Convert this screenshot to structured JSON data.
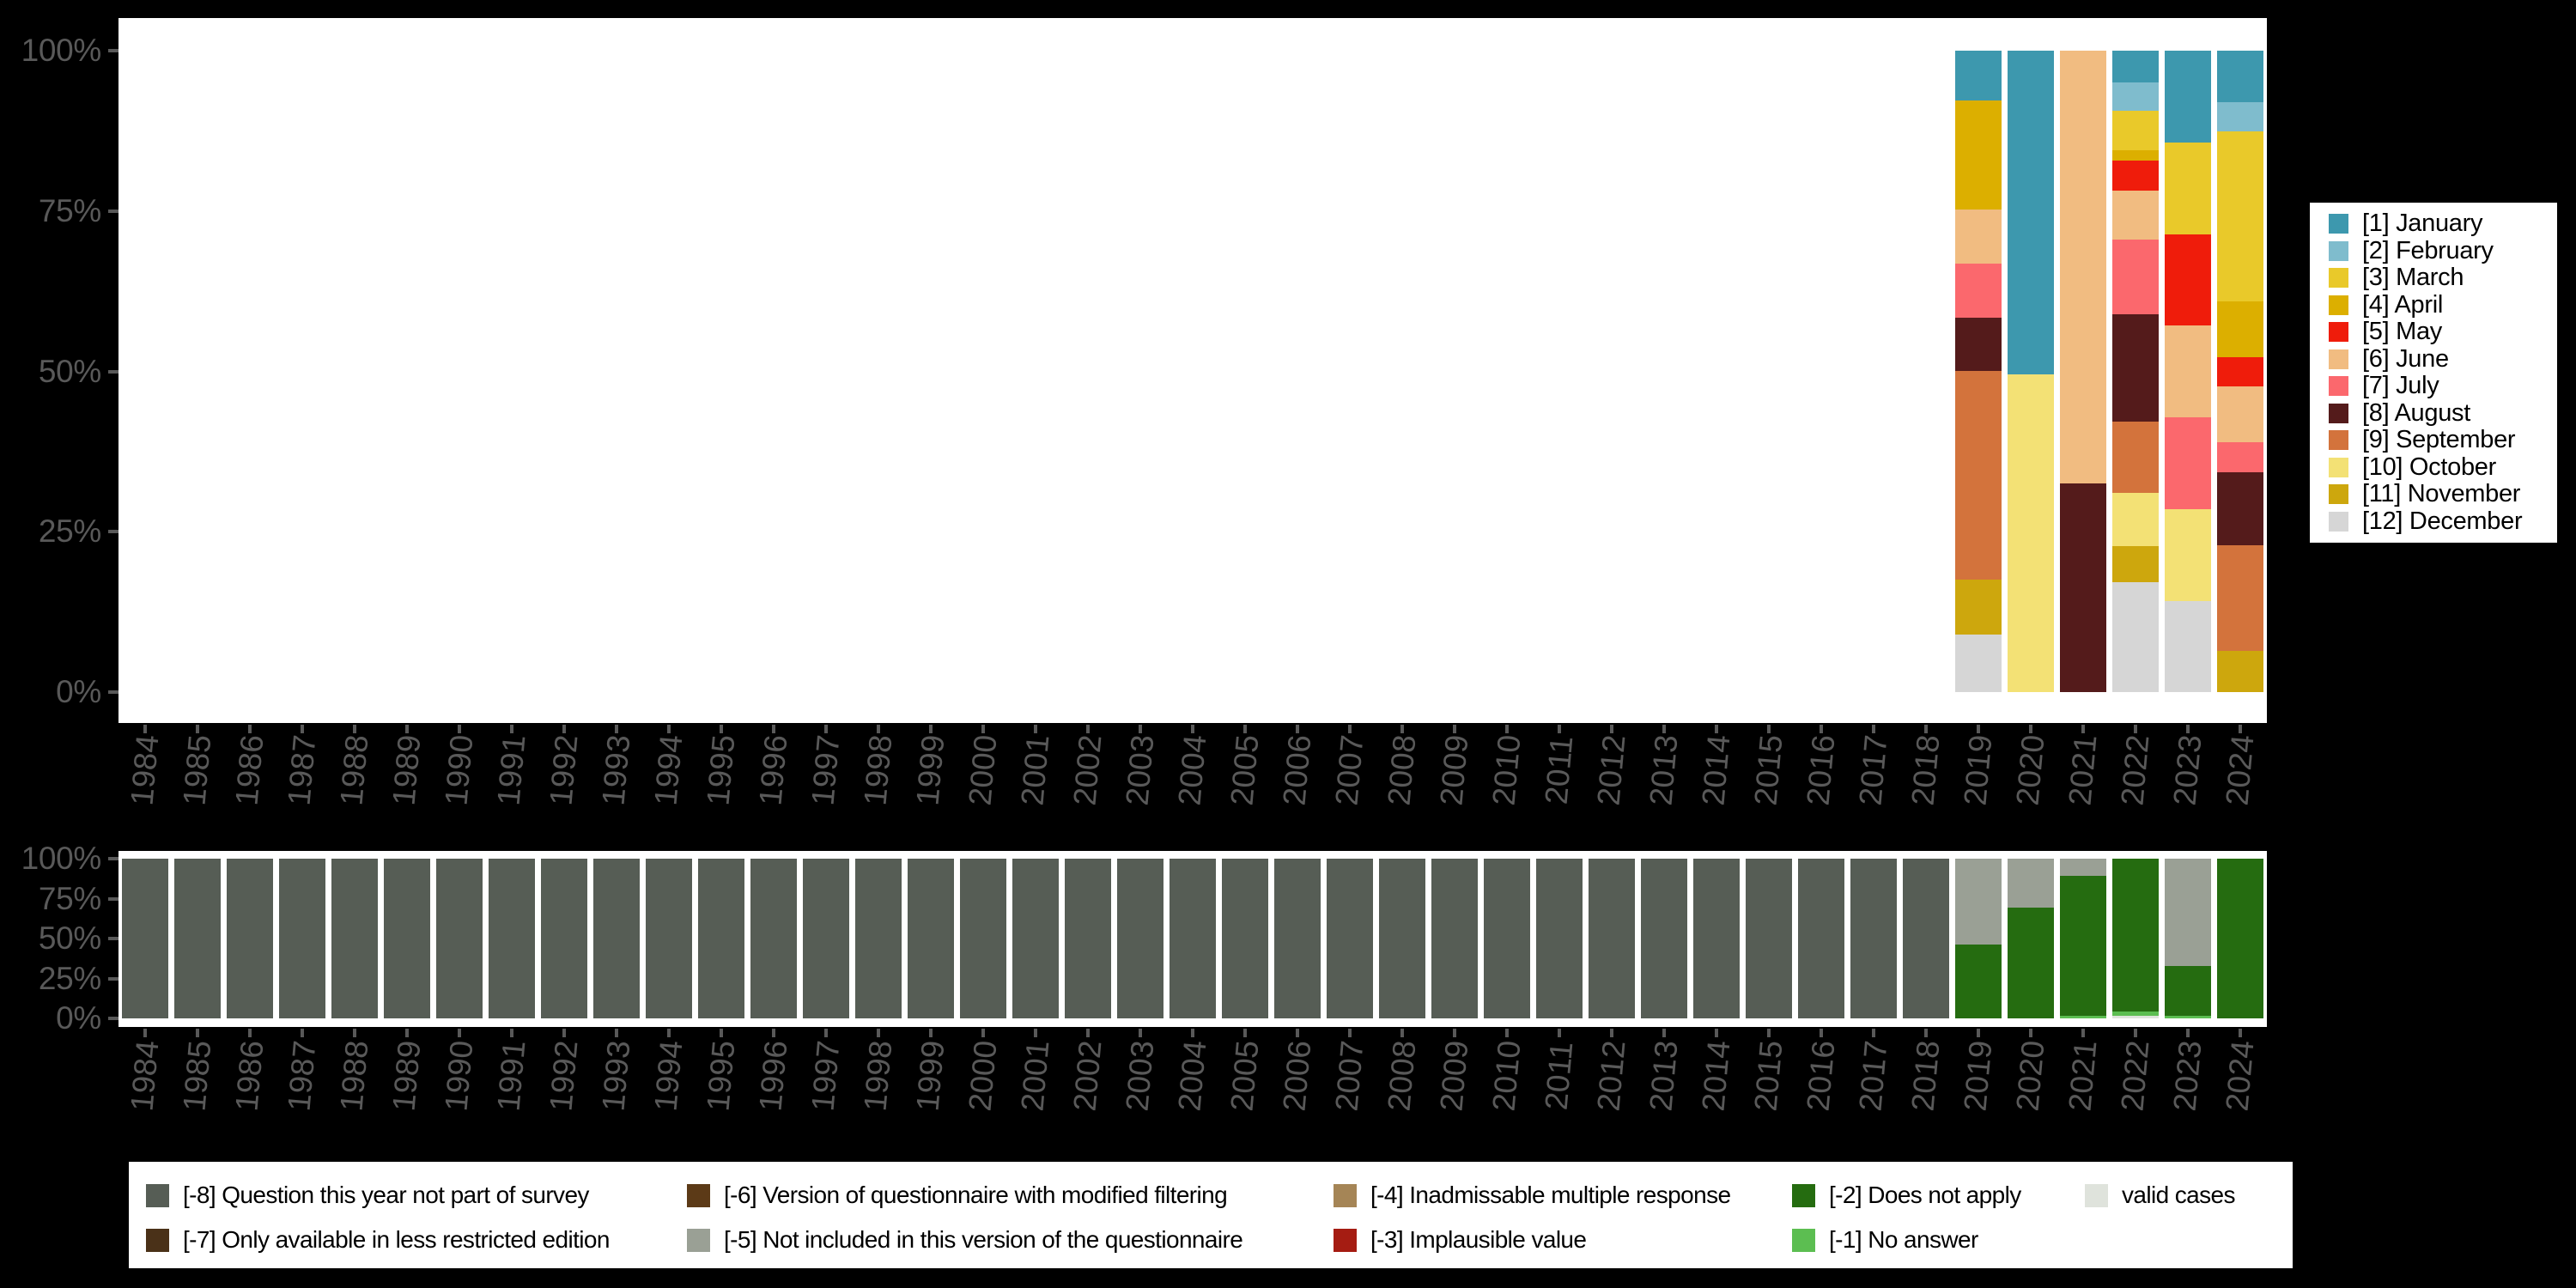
{
  "colors": {
    "background": "#000000",
    "panel_background": "#ffffff",
    "axis_text": "#595959",
    "legend_text": "#000000",
    "legend_background": "#ffffff"
  },
  "month_colors": {
    "January": "#3D98AE",
    "February": "#7FBCCD",
    "March": "#E9C92A",
    "April": "#DCAF00",
    "May": "#EF1C0B",
    "June": "#F1BC81",
    "July": "#FB686D",
    "August": "#541B1B",
    "September": "#D3733C",
    "October": "#F3E175",
    "November": "#CDA70D",
    "December": "#D6D6D6"
  },
  "missing_colors": {
    "-8": "#565D55",
    "-7": "#4A3118",
    "-6": "#5C3A17",
    "-5": "#9AA095",
    "-4": "#A58556",
    "-3": "#A51C12",
    "-2": "#256C10",
    "-1": "#5CBE51",
    "valid": "#DFE3DC"
  },
  "month_legend": {
    "position": "right",
    "items": [
      {
        "month": "January",
        "label": "[1] January"
      },
      {
        "month": "February",
        "label": "[2] February"
      },
      {
        "month": "March",
        "label": "[3] March"
      },
      {
        "month": "April",
        "label": "[4] April"
      },
      {
        "month": "May",
        "label": "[5] May"
      },
      {
        "month": "June",
        "label": "[6] June"
      },
      {
        "month": "July",
        "label": "[7] July"
      },
      {
        "month": "August",
        "label": "[8] August"
      },
      {
        "month": "September",
        "label": "[9] September"
      },
      {
        "month": "October",
        "label": "[10] October"
      },
      {
        "month": "November",
        "label": "[11] November"
      },
      {
        "month": "December",
        "label": "[12] December"
      }
    ]
  },
  "missing_legend": {
    "position": "bottom",
    "columns": [
      [
        {
          "code": "-8",
          "label": "[-8] Question this year not part of survey"
        },
        {
          "code": "-7",
          "label": "[-7] Only available in less restricted edition"
        }
      ],
      [
        {
          "code": "-6",
          "label": "[-6] Version of questionnaire with modified filtering"
        },
        {
          "code": "-5",
          "label": "[-5] Not included in this version of the questionnaire"
        }
      ],
      [
        {
          "code": "-4",
          "label": "[-4] Inadmissable multiple response"
        },
        {
          "code": "-3",
          "label": "[-3] Implausible value"
        }
      ],
      [
        {
          "code": "-2",
          "label": "[-2] Does not apply"
        },
        {
          "code": "-1",
          "label": "[-1] No answer"
        }
      ],
      [
        {
          "code": "valid",
          "label": "valid cases"
        }
      ]
    ]
  },
  "chart_data": [
    {
      "type": "bar",
      "stacked": true,
      "title": "",
      "xlabel": "",
      "ylabel": "",
      "unit": "percent",
      "ylim": [
        0,
        100
      ],
      "yticks": [
        "100%",
        "75%",
        "50%",
        "25%",
        "0%"
      ],
      "grid": false,
      "legend_position": "right",
      "categories": [
        "1984",
        "1985",
        "1986",
        "1987",
        "1988",
        "1989",
        "1990",
        "1991",
        "1992",
        "1993",
        "1994",
        "1995",
        "1996",
        "1997",
        "1998",
        "1999",
        "2000",
        "2001",
        "2002",
        "2003",
        "2004",
        "2005",
        "2006",
        "2007",
        "2008",
        "2009",
        "2010",
        "2011",
        "2012",
        "2013",
        "2014",
        "2015",
        "2016",
        "2017",
        "2018",
        "2019",
        "2020",
        "2021",
        "2022",
        "2023",
        "2024"
      ],
      "bars": {
        "2019": [
          {
            "month": "January",
            "pct": 7.7
          },
          {
            "month": "April",
            "pct": 17.1
          },
          {
            "month": "June",
            "pct": 8.4
          },
          {
            "month": "July",
            "pct": 8.5
          },
          {
            "month": "August",
            "pct": 8.3
          },
          {
            "month": "September",
            "pct": 32.5
          },
          {
            "month": "November",
            "pct": 8.5
          },
          {
            "month": "December",
            "pct": 9.0
          }
        ],
        "2020": [
          {
            "month": "January",
            "pct": 50.5
          },
          {
            "month": "October",
            "pct": 49.5
          }
        ],
        "2021": [
          {
            "month": "June",
            "pct": 67.5
          },
          {
            "month": "August",
            "pct": 32.5
          }
        ],
        "2022": [
          {
            "month": "January",
            "pct": 5.0
          },
          {
            "month": "February",
            "pct": 4.4
          },
          {
            "month": "March",
            "pct": 6.1
          },
          {
            "month": "April",
            "pct": 1.7
          },
          {
            "month": "May",
            "pct": 4.6
          },
          {
            "month": "June",
            "pct": 7.7
          },
          {
            "month": "July",
            "pct": 11.6
          },
          {
            "month": "August",
            "pct": 16.7
          },
          {
            "month": "September",
            "pct": 11.2
          },
          {
            "month": "October",
            "pct": 8.3
          },
          {
            "month": "November",
            "pct": 5.6
          },
          {
            "month": "December",
            "pct": 17.1
          }
        ],
        "2023": [
          {
            "month": "January",
            "pct": 14.3
          },
          {
            "month": "March",
            "pct": 14.3
          },
          {
            "month": "May",
            "pct": 14.3
          },
          {
            "month": "June",
            "pct": 14.3
          },
          {
            "month": "July",
            "pct": 14.3
          },
          {
            "month": "October",
            "pct": 14.3
          },
          {
            "month": "December",
            "pct": 14.2
          }
        ],
        "2024": [
          {
            "month": "January",
            "pct": 8.0
          },
          {
            "month": "February",
            "pct": 4.6
          },
          {
            "month": "March",
            "pct": 26.5
          },
          {
            "month": "April",
            "pct": 8.7
          },
          {
            "month": "May",
            "pct": 4.6
          },
          {
            "month": "June",
            "pct": 8.7
          },
          {
            "month": "July",
            "pct": 4.6
          },
          {
            "month": "August",
            "pct": 11.4
          },
          {
            "month": "September",
            "pct": 16.5
          },
          {
            "month": "November",
            "pct": 6.4
          }
        ]
      }
    },
    {
      "type": "bar",
      "stacked": true,
      "title": "",
      "xlabel": "",
      "ylabel": "",
      "unit": "percent",
      "ylim": [
        0,
        100
      ],
      "yticks": [
        "100%",
        "75%",
        "50%",
        "25%",
        "0%"
      ],
      "grid": false,
      "legend_position": "bottom",
      "categories": [
        "1984",
        "1985",
        "1986",
        "1987",
        "1988",
        "1989",
        "1990",
        "1991",
        "1992",
        "1993",
        "1994",
        "1995",
        "1996",
        "1997",
        "1998",
        "1999",
        "2000",
        "2001",
        "2002",
        "2003",
        "2004",
        "2005",
        "2006",
        "2007",
        "2008",
        "2009",
        "2010",
        "2011",
        "2012",
        "2013",
        "2014",
        "2015",
        "2016",
        "2017",
        "2018",
        "2019",
        "2020",
        "2021",
        "2022",
        "2023",
        "2024"
      ],
      "bars": {
        "1984": [
          {
            "code": "-8",
            "pct": 100
          }
        ],
        "1985": [
          {
            "code": "-8",
            "pct": 100
          }
        ],
        "1986": [
          {
            "code": "-8",
            "pct": 100
          }
        ],
        "1987": [
          {
            "code": "-8",
            "pct": 100
          }
        ],
        "1988": [
          {
            "code": "-8",
            "pct": 100
          }
        ],
        "1989": [
          {
            "code": "-8",
            "pct": 100
          }
        ],
        "1990": [
          {
            "code": "-8",
            "pct": 100
          }
        ],
        "1991": [
          {
            "code": "-8",
            "pct": 100
          }
        ],
        "1992": [
          {
            "code": "-8",
            "pct": 100
          }
        ],
        "1993": [
          {
            "code": "-8",
            "pct": 100
          }
        ],
        "1994": [
          {
            "code": "-8",
            "pct": 100
          }
        ],
        "1995": [
          {
            "code": "-8",
            "pct": 100
          }
        ],
        "1996": [
          {
            "code": "-8",
            "pct": 100
          }
        ],
        "1997": [
          {
            "code": "-8",
            "pct": 100
          }
        ],
        "1998": [
          {
            "code": "-8",
            "pct": 100
          }
        ],
        "1999": [
          {
            "code": "-8",
            "pct": 100
          }
        ],
        "2000": [
          {
            "code": "-8",
            "pct": 100
          }
        ],
        "2001": [
          {
            "code": "-8",
            "pct": 100
          }
        ],
        "2002": [
          {
            "code": "-8",
            "pct": 100
          }
        ],
        "2003": [
          {
            "code": "-8",
            "pct": 100
          }
        ],
        "2004": [
          {
            "code": "-8",
            "pct": 100
          }
        ],
        "2005": [
          {
            "code": "-8",
            "pct": 100
          }
        ],
        "2006": [
          {
            "code": "-8",
            "pct": 100
          }
        ],
        "2007": [
          {
            "code": "-8",
            "pct": 100
          }
        ],
        "2008": [
          {
            "code": "-8",
            "pct": 100
          }
        ],
        "2009": [
          {
            "code": "-8",
            "pct": 100
          }
        ],
        "2010": [
          {
            "code": "-8",
            "pct": 100
          }
        ],
        "2011": [
          {
            "code": "-8",
            "pct": 100
          }
        ],
        "2012": [
          {
            "code": "-8",
            "pct": 100
          }
        ],
        "2013": [
          {
            "code": "-8",
            "pct": 100
          }
        ],
        "2014": [
          {
            "code": "-8",
            "pct": 100
          }
        ],
        "2015": [
          {
            "code": "-8",
            "pct": 100
          }
        ],
        "2016": [
          {
            "code": "-8",
            "pct": 100
          }
        ],
        "2017": [
          {
            "code": "-8",
            "pct": 100
          }
        ],
        "2018": [
          {
            "code": "-8",
            "pct": 100
          }
        ],
        "2019": [
          {
            "code": "-5",
            "pct": 53.5
          },
          {
            "code": "-2",
            "pct": 46.5
          }
        ],
        "2020": [
          {
            "code": "-5",
            "pct": 30.5
          },
          {
            "code": "-2",
            "pct": 69.5
          }
        ],
        "2021": [
          {
            "code": "-5",
            "pct": 11.0
          },
          {
            "code": "-2",
            "pct": 87.5
          },
          {
            "code": "-1",
            "pct": 1.5
          }
        ],
        "2022": [
          {
            "code": "-2",
            "pct": 95.5
          },
          {
            "code": "-1",
            "pct": 3.0
          },
          {
            "code": "valid",
            "pct": 1.5
          }
        ],
        "2023": [
          {
            "code": "-5",
            "pct": 67.0
          },
          {
            "code": "-2",
            "pct": 31.5
          },
          {
            "code": "-1",
            "pct": 1.5
          }
        ],
        "2024": [
          {
            "code": "-2",
            "pct": 100
          }
        ]
      }
    }
  ]
}
